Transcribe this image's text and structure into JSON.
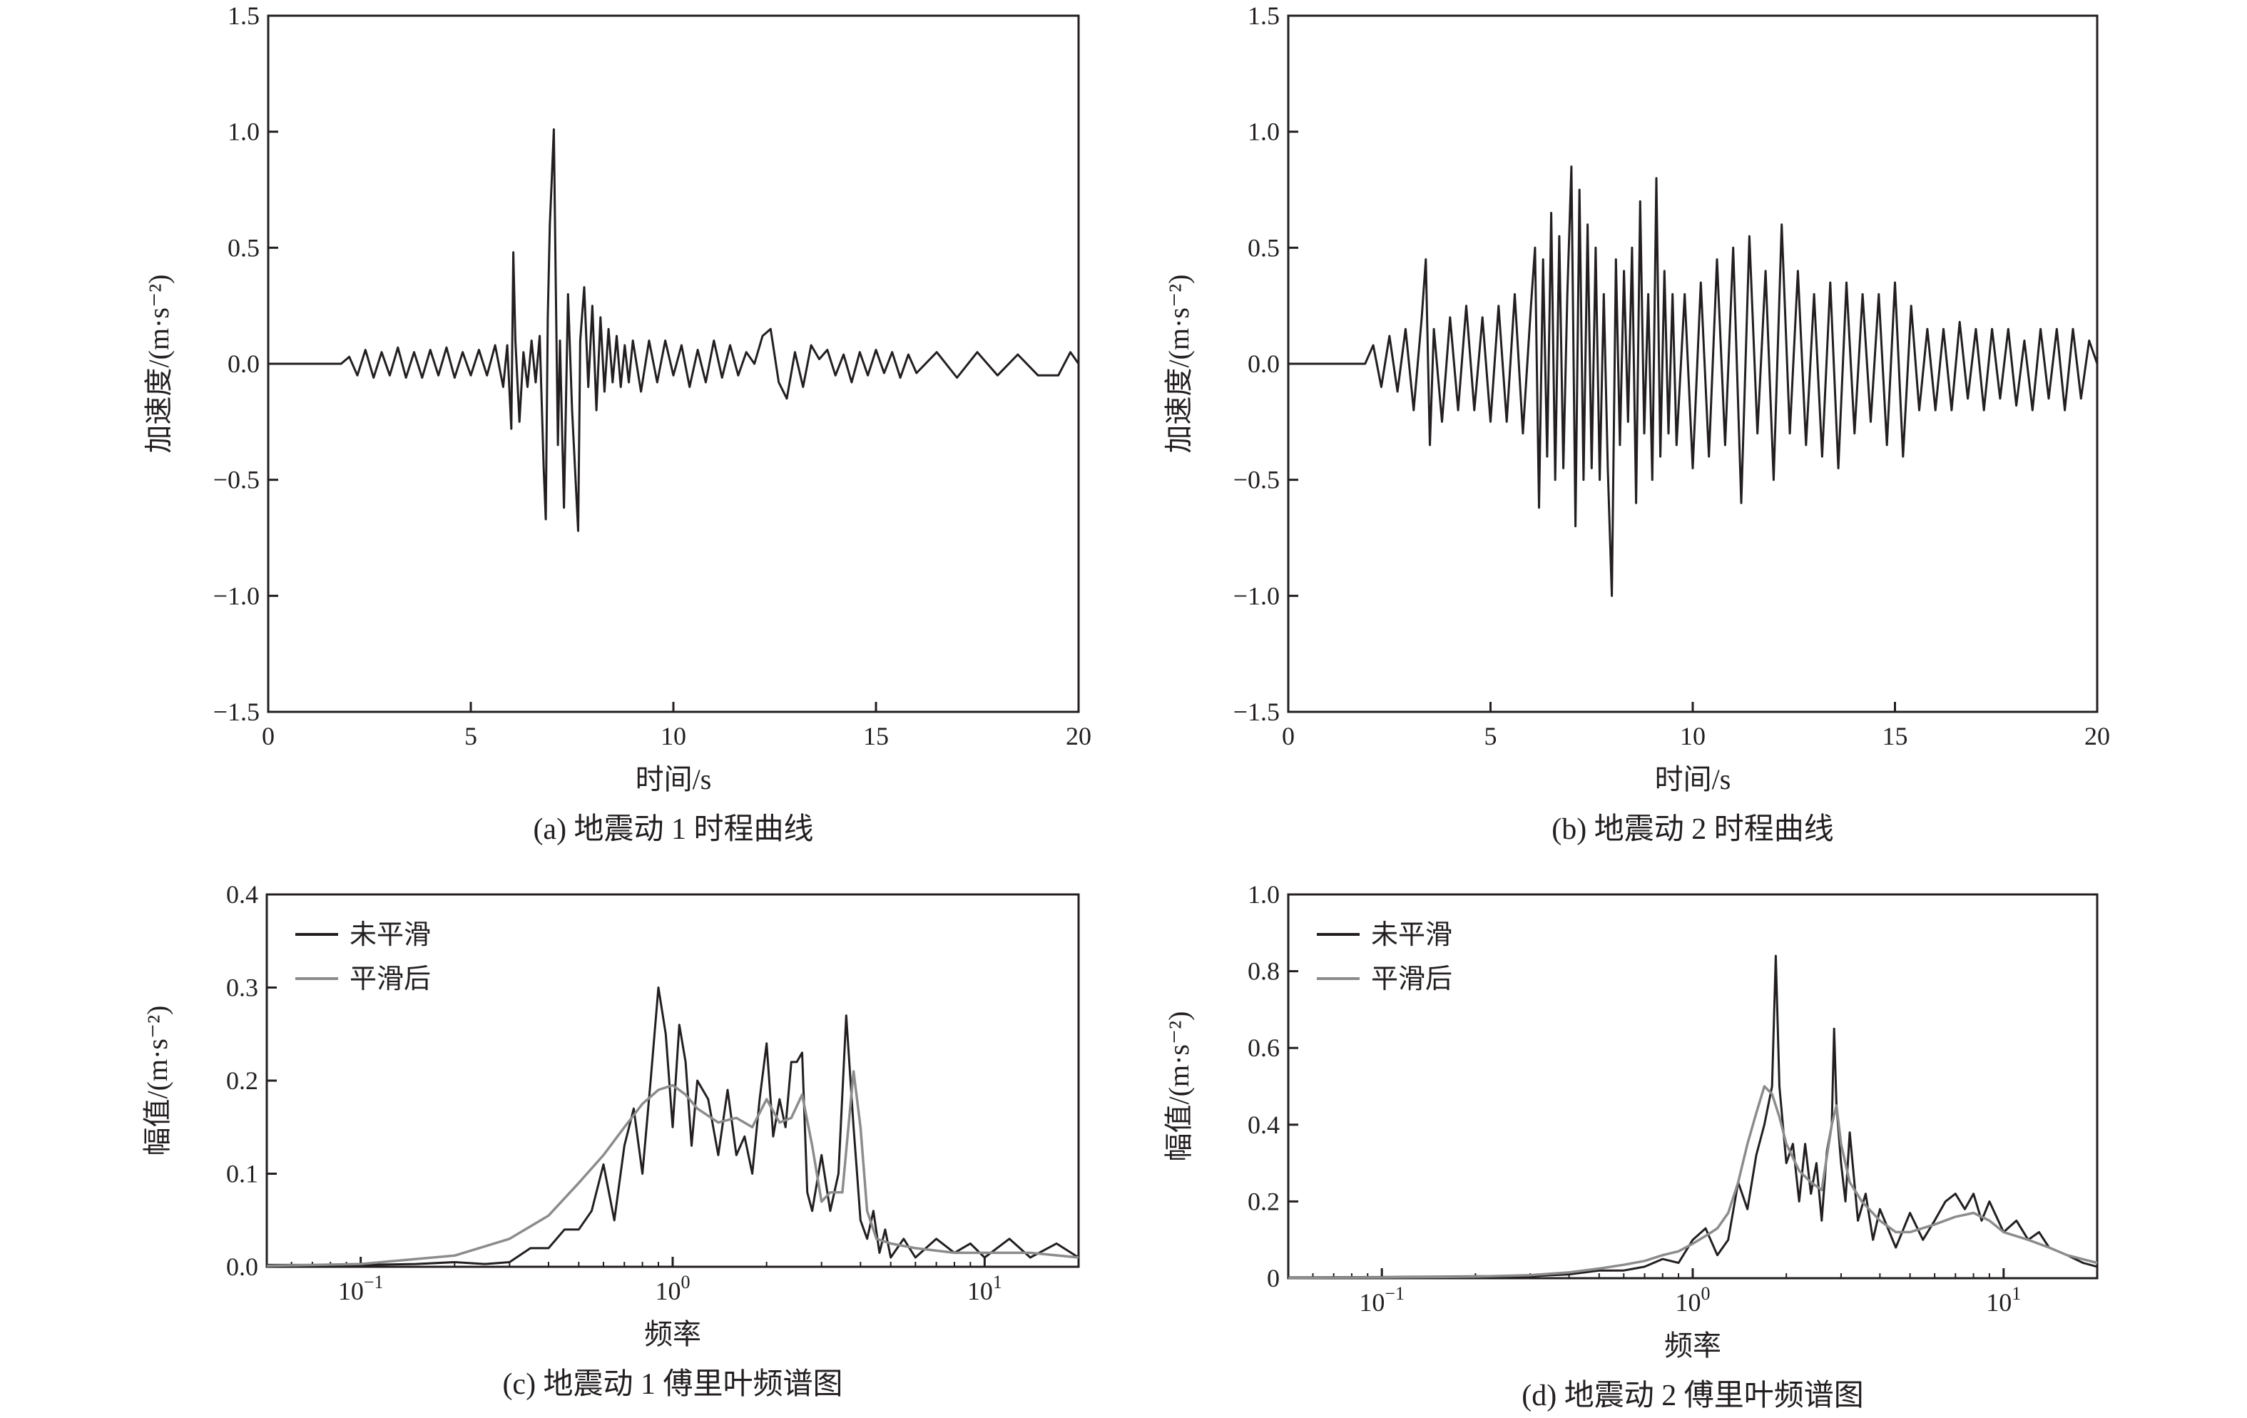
{
  "colors": {
    "raw": "#231f20",
    "smooth": "#8c8c8c",
    "frame": "#231f20"
  },
  "chart_data": [
    {
      "id": "a",
      "type": "line",
      "caption": "(a) 地震动 1 时程曲线",
      "xlabel": "时间/s",
      "ylabel": "加速度/(m·s⁻²)",
      "xlim": [
        0,
        20
      ],
      "ylim": [
        -1.5,
        1.5
      ],
      "xticks": [
        0,
        5,
        10,
        15,
        20
      ],
      "xtick_labels": [
        "0",
        "5",
        "10",
        "15",
        "20"
      ],
      "yticks": [
        -1.5,
        -1.0,
        -0.5,
        0.0,
        0.5,
        1.0,
        1.5
      ],
      "ytick_labels": [
        "−1.5",
        "−1.0",
        "−0.5",
        "0.0",
        "0.5",
        "1.0",
        "1.5"
      ],
      "series": [
        {
          "key": "raw",
          "color": "#231f20",
          "x": [
            0,
            1.8,
            2.0,
            2.2,
            2.4,
            2.6,
            2.8,
            3.0,
            3.2,
            3.4,
            3.6,
            3.8,
            4.0,
            4.2,
            4.4,
            4.6,
            4.8,
            5.0,
            5.2,
            5.4,
            5.6,
            5.8,
            5.9,
            6.0,
            6.05,
            6.1,
            6.2,
            6.3,
            6.4,
            6.5,
            6.6,
            6.7,
            6.8,
            6.85,
            6.9,
            6.95,
            7.0,
            7.05,
            7.1,
            7.15,
            7.2,
            7.3,
            7.4,
            7.5,
            7.6,
            7.65,
            7.7,
            7.8,
            7.9,
            8.0,
            8.1,
            8.2,
            8.3,
            8.4,
            8.5,
            8.6,
            8.7,
            8.8,
            8.9,
            9.0,
            9.2,
            9.4,
            9.6,
            9.8,
            10.0,
            10.2,
            10.4,
            10.6,
            10.8,
            11.0,
            11.2,
            11.4,
            11.6,
            11.8,
            12.0,
            12.2,
            12.4,
            12.6,
            12.8,
            13.0,
            13.2,
            13.4,
            13.6,
            13.8,
            14.0,
            14.2,
            14.4,
            14.6,
            14.8,
            15.0,
            15.2,
            15.4,
            15.6,
            15.8,
            16.0,
            16.5,
            17.0,
            17.5,
            18.0,
            18.5,
            19.0,
            19.5,
            19.8,
            20.0
          ],
          "y": [
            0,
            0,
            0.03,
            -0.05,
            0.06,
            -0.06,
            0.05,
            -0.05,
            0.07,
            -0.06,
            0.05,
            -0.06,
            0.06,
            -0.05,
            0.07,
            -0.06,
            0.05,
            -0.05,
            0.06,
            -0.05,
            0.08,
            -0.1,
            0.08,
            -0.28,
            0.48,
            0.1,
            -0.25,
            0.05,
            -0.1,
            0.1,
            -0.08,
            0.12,
            -0.45,
            -0.67,
            0.2,
            0.6,
            0.8,
            1.01,
            0.3,
            -0.35,
            0.1,
            -0.62,
            0.3,
            -0.2,
            -0.55,
            -0.72,
            0.1,
            0.33,
            -0.1,
            0.25,
            -0.2,
            0.2,
            -0.12,
            0.15,
            -0.08,
            0.12,
            -0.1,
            0.08,
            -0.08,
            0.1,
            -0.12,
            0.1,
            -0.08,
            0.1,
            -0.05,
            0.08,
            -0.1,
            0.06,
            -0.08,
            0.1,
            -0.06,
            0.08,
            -0.05,
            0.05,
            0.0,
            0.12,
            0.15,
            -0.08,
            -0.15,
            0.05,
            -0.1,
            0.08,
            0.02,
            0.06,
            -0.05,
            0.04,
            -0.08,
            0.05,
            -0.05,
            0.06,
            -0.04,
            0.05,
            -0.06,
            0.04,
            -0.04,
            0.05,
            -0.06,
            0.05,
            -0.05,
            0.04,
            -0.05,
            -0.05,
            0.05,
            0.0
          ]
        }
      ]
    },
    {
      "id": "b",
      "type": "line",
      "caption": "(b) 地震动 2 时程曲线",
      "xlabel": "时间/s",
      "ylabel": "加速度/(m·s⁻²)",
      "xlim": [
        0,
        20
      ],
      "ylim": [
        -1.5,
        1.5
      ],
      "xticks": [
        0,
        5,
        10,
        15,
        20
      ],
      "xtick_labels": [
        "0",
        "5",
        "10",
        "15",
        "20"
      ],
      "yticks": [
        -1.5,
        -1.0,
        -0.5,
        0.0,
        0.5,
        1.0,
        1.5
      ],
      "ytick_labels": [
        "−1.5",
        "−1.0",
        "−0.5",
        "0.0",
        "0.5",
        "1.0",
        "1.5"
      ],
      "series": [
        {
          "key": "raw",
          "color": "#231f20",
          "x": [
            0,
            1.9,
            2.1,
            2.3,
            2.5,
            2.7,
            2.9,
            3.1,
            3.3,
            3.4,
            3.5,
            3.6,
            3.8,
            4.0,
            4.2,
            4.4,
            4.6,
            4.8,
            5.0,
            5.2,
            5.4,
            5.6,
            5.8,
            6.0,
            6.1,
            6.2,
            6.3,
            6.4,
            6.5,
            6.6,
            6.7,
            6.8,
            6.9,
            7.0,
            7.1,
            7.2,
            7.3,
            7.4,
            7.5,
            7.6,
            7.7,
            7.8,
            7.9,
            8.0,
            8.1,
            8.2,
            8.3,
            8.4,
            8.5,
            8.6,
            8.7,
            8.8,
            8.9,
            9.0,
            9.1,
            9.2,
            9.3,
            9.4,
            9.5,
            9.6,
            9.8,
            10.0,
            10.2,
            10.4,
            10.6,
            10.8,
            11.0,
            11.2,
            11.4,
            11.6,
            11.8,
            12.0,
            12.2,
            12.4,
            12.6,
            12.8,
            13.0,
            13.2,
            13.4,
            13.6,
            13.8,
            14.0,
            14.2,
            14.4,
            14.6,
            14.8,
            15.0,
            15.2,
            15.4,
            15.6,
            15.8,
            16.0,
            16.2,
            16.4,
            16.6,
            16.8,
            17.0,
            17.2,
            17.4,
            17.6,
            17.8,
            18.0,
            18.2,
            18.4,
            18.6,
            18.8,
            19.0,
            19.2,
            19.4,
            19.6,
            19.8,
            20.0
          ],
          "y": [
            0,
            0,
            0.08,
            -0.1,
            0.12,
            -0.12,
            0.15,
            -0.2,
            0.2,
            0.45,
            -0.35,
            0.15,
            -0.25,
            0.2,
            -0.2,
            0.25,
            -0.2,
            0.2,
            -0.25,
            0.25,
            -0.25,
            0.3,
            -0.3,
            0.25,
            0.5,
            -0.62,
            0.45,
            -0.4,
            0.65,
            -0.5,
            0.55,
            -0.45,
            0.3,
            0.85,
            -0.7,
            0.75,
            -0.5,
            0.6,
            -0.45,
            0.5,
            -0.5,
            0.3,
            -0.45,
            -1.0,
            0.45,
            -0.35,
            0.4,
            -0.25,
            0.5,
            -0.6,
            0.7,
            -0.3,
            0.3,
            -0.5,
            0.8,
            -0.4,
            0.4,
            -0.3,
            0.3,
            -0.35,
            0.3,
            -0.45,
            0.35,
            -0.4,
            0.45,
            -0.35,
            0.5,
            -0.6,
            0.55,
            -0.3,
            0.4,
            -0.5,
            0.6,
            -0.3,
            0.4,
            -0.35,
            0.3,
            -0.4,
            0.35,
            -0.45,
            0.35,
            -0.3,
            0.3,
            -0.25,
            0.3,
            -0.35,
            0.35,
            -0.4,
            0.25,
            -0.2,
            0.15,
            -0.2,
            0.15,
            -0.2,
            0.18,
            -0.15,
            0.15,
            -0.2,
            0.15,
            -0.15,
            0.15,
            -0.18,
            0.1,
            -0.2,
            0.15,
            -0.15,
            0.15,
            -0.2,
            0.15,
            -0.15,
            0.1,
            0.0
          ]
        }
      ]
    },
    {
      "id": "c",
      "type": "line",
      "xscale": "log",
      "caption": "(c) 地震动 1 傅里叶频谱图",
      "xlabel": "频率",
      "ylabel": "幅值/(m·s⁻²)",
      "xlim": [
        0.05,
        20
      ],
      "ylim": [
        0,
        0.4
      ],
      "xticks": [
        0.1,
        1,
        10
      ],
      "xtick_labels": [
        "10",
        "10",
        "10"
      ],
      "xtick_exponents": [
        "−1",
        "0",
        "1"
      ],
      "yticks": [
        0.0,
        0.1,
        0.2,
        0.3,
        0.4
      ],
      "ytick_labels": [
        "0.0",
        "0.1",
        "0.2",
        "0.3",
        "0.4"
      ],
      "legend": {
        "position": "top-left",
        "entries": [
          "未平滑",
          "平滑后"
        ]
      },
      "series": [
        {
          "name": "未平滑",
          "color": "#231f20",
          "x": [
            0.05,
            0.1,
            0.15,
            0.2,
            0.25,
            0.3,
            0.35,
            0.4,
            0.45,
            0.5,
            0.55,
            0.6,
            0.65,
            0.7,
            0.75,
            0.8,
            0.85,
            0.9,
            0.95,
            1.0,
            1.05,
            1.1,
            1.15,
            1.2,
            1.3,
            1.4,
            1.5,
            1.6,
            1.7,
            1.8,
            1.9,
            2.0,
            2.1,
            2.2,
            2.3,
            2.4,
            2.5,
            2.6,
            2.7,
            2.8,
            3.0,
            3.2,
            3.4,
            3.6,
            3.8,
            3.9,
            4.0,
            4.2,
            4.4,
            4.6,
            4.8,
            5.0,
            5.5,
            6,
            7,
            8,
            9,
            10,
            12,
            14,
            17,
            20
          ],
          "y": [
            0.002,
            0.002,
            0.003,
            0.005,
            0.003,
            0.005,
            0.02,
            0.02,
            0.04,
            0.04,
            0.06,
            0.11,
            0.05,
            0.13,
            0.17,
            0.1,
            0.2,
            0.3,
            0.25,
            0.15,
            0.26,
            0.22,
            0.13,
            0.2,
            0.18,
            0.12,
            0.19,
            0.12,
            0.14,
            0.1,
            0.18,
            0.24,
            0.14,
            0.18,
            0.15,
            0.22,
            0.22,
            0.23,
            0.08,
            0.06,
            0.12,
            0.06,
            0.1,
            0.27,
            0.15,
            0.1,
            0.05,
            0.03,
            0.06,
            0.015,
            0.04,
            0.01,
            0.03,
            0.01,
            0.03,
            0.015,
            0.025,
            0.01,
            0.03,
            0.01,
            0.025,
            0.01
          ]
        },
        {
          "name": "平滑后",
          "color": "#8c8c8c",
          "x": [
            0.05,
            0.1,
            0.2,
            0.3,
            0.4,
            0.5,
            0.6,
            0.7,
            0.8,
            0.9,
            1.0,
            1.1,
            1.2,
            1.4,
            1.6,
            1.8,
            2.0,
            2.2,
            2.4,
            2.6,
            2.8,
            3.0,
            3.2,
            3.5,
            3.8,
            4.0,
            4.2,
            4.5,
            5.0,
            6,
            8,
            10,
            14,
            20
          ],
          "y": [
            0.001,
            0.003,
            0.012,
            0.03,
            0.055,
            0.09,
            0.12,
            0.15,
            0.175,
            0.19,
            0.195,
            0.185,
            0.17,
            0.155,
            0.16,
            0.15,
            0.18,
            0.155,
            0.16,
            0.185,
            0.13,
            0.07,
            0.08,
            0.08,
            0.21,
            0.15,
            0.06,
            0.03,
            0.025,
            0.02,
            0.015,
            0.015,
            0.015,
            0.01
          ]
        }
      ]
    },
    {
      "id": "d",
      "type": "line",
      "xscale": "log",
      "caption": "(d) 地震动 2 傅里叶频谱图",
      "xlabel": "频率",
      "ylabel": "幅值/(m·s⁻²)",
      "xlim": [
        0.05,
        20
      ],
      "ylim": [
        0,
        1.0
      ],
      "xticks": [
        0.1,
        1,
        10
      ],
      "xtick_labels": [
        "10",
        "10",
        "10"
      ],
      "xtick_exponents": [
        "−1",
        "0",
        "1"
      ],
      "yticks": [
        0,
        0.2,
        0.4,
        0.6,
        0.8,
        1.0
      ],
      "ytick_labels": [
        "0",
        "0.2",
        "0.4",
        "0.6",
        "0.8",
        "1.0"
      ],
      "legend": {
        "position": "top-left",
        "entries": [
          "未平滑",
          "平滑后"
        ]
      },
      "series": [
        {
          "name": "未平滑",
          "color": "#231f20",
          "x": [
            0.05,
            0.1,
            0.2,
            0.3,
            0.4,
            0.5,
            0.6,
            0.7,
            0.8,
            0.9,
            1.0,
            1.1,
            1.2,
            1.3,
            1.4,
            1.5,
            1.6,
            1.7,
            1.8,
            1.85,
            1.9,
            2.0,
            2.1,
            2.2,
            2.3,
            2.4,
            2.5,
            2.6,
            2.7,
            2.8,
            2.85,
            2.9,
            3.0,
            3.1,
            3.2,
            3.4,
            3.6,
            3.8,
            4.0,
            4.5,
            5,
            5.5,
            6,
            6.5,
            7,
            7.5,
            8,
            8.5,
            9,
            10,
            11,
            12,
            13,
            14,
            16,
            18,
            20
          ],
          "y": [
            0.002,
            0.003,
            0.005,
            0.005,
            0.01,
            0.02,
            0.02,
            0.03,
            0.05,
            0.04,
            0.1,
            0.13,
            0.06,
            0.1,
            0.25,
            0.18,
            0.32,
            0.4,
            0.5,
            0.84,
            0.5,
            0.3,
            0.35,
            0.2,
            0.35,
            0.22,
            0.3,
            0.15,
            0.33,
            0.4,
            0.65,
            0.45,
            0.3,
            0.2,
            0.38,
            0.15,
            0.22,
            0.1,
            0.18,
            0.08,
            0.17,
            0.1,
            0.15,
            0.2,
            0.22,
            0.18,
            0.22,
            0.15,
            0.2,
            0.12,
            0.15,
            0.1,
            0.12,
            0.08,
            0.06,
            0.04,
            0.03
          ]
        },
        {
          "name": "平滑后",
          "color": "#8c8c8c",
          "x": [
            0.05,
            0.1,
            0.2,
            0.3,
            0.4,
            0.5,
            0.6,
            0.7,
            0.8,
            0.9,
            1.0,
            1.1,
            1.2,
            1.3,
            1.4,
            1.5,
            1.6,
            1.7,
            1.8,
            1.9,
            2.0,
            2.2,
            2.4,
            2.6,
            2.8,
            2.9,
            3.0,
            3.2,
            3.5,
            4.0,
            4.5,
            5,
            6,
            7,
            8,
            9,
            10,
            12,
            14,
            16,
            20
          ],
          "y": [
            0.001,
            0.002,
            0.004,
            0.008,
            0.015,
            0.025,
            0.035,
            0.045,
            0.06,
            0.07,
            0.09,
            0.11,
            0.13,
            0.17,
            0.25,
            0.35,
            0.43,
            0.5,
            0.48,
            0.42,
            0.35,
            0.28,
            0.25,
            0.23,
            0.4,
            0.45,
            0.35,
            0.25,
            0.2,
            0.15,
            0.12,
            0.12,
            0.14,
            0.16,
            0.17,
            0.15,
            0.12,
            0.1,
            0.08,
            0.06,
            0.04
          ]
        }
      ]
    }
  ]
}
